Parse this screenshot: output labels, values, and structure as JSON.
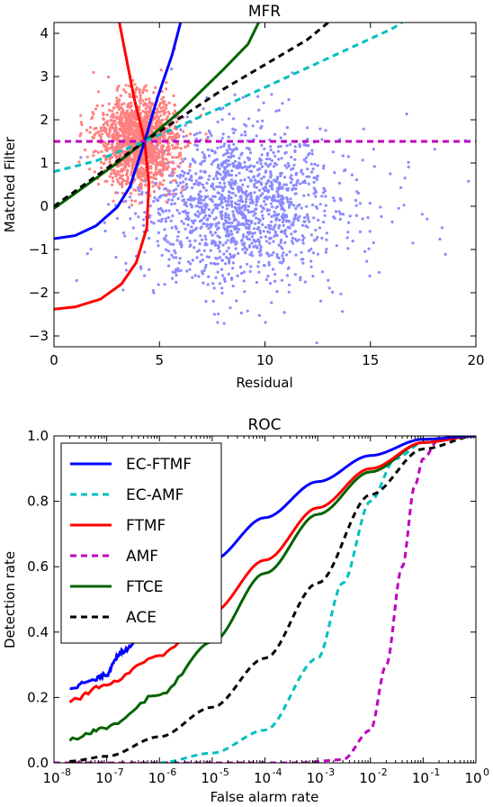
{
  "chart_data": [
    {
      "type": "scatter",
      "title": "MFR",
      "xlabel": "Residual",
      "ylabel": "Matched Filter",
      "xlim": [
        0,
        20
      ],
      "ylim": [
        -3.25,
        4.25
      ],
      "x_ticks": [
        "0",
        "5",
        "10",
        "15",
        "20"
      ],
      "y_ticks": [
        "−3",
        "−2",
        "−1",
        "0",
        "1",
        "2",
        "3",
        "4"
      ],
      "x_tick_values": [
        0,
        5,
        10,
        15,
        20
      ],
      "y_tick_values": [
        -3,
        -2,
        -1,
        0,
        1,
        2,
        3,
        4
      ],
      "scatter_series": [
        {
          "color": "#ff8080",
          "center": [
            4.0,
            1.5
          ],
          "spread": [
            0.9,
            0.5
          ],
          "count": 1600
        },
        {
          "color": "#8a8aff",
          "center": [
            8.5,
            0.0
          ],
          "spread": [
            2.3,
            0.95
          ],
          "count": 1500
        }
      ],
      "curves": [
        {
          "color": "#ff0000",
          "dash": "solid",
          "points": [
            [
              3.1,
              4.25
            ],
            [
              3.4,
              3.5
            ],
            [
              3.8,
              2.5
            ],
            [
              4.3,
              1.5
            ],
            [
              4.5,
              0.5
            ],
            [
              4.4,
              -0.5
            ],
            [
              3.9,
              -1.3
            ],
            [
              3.2,
              -1.8
            ],
            [
              2.2,
              -2.15
            ],
            [
              1.0,
              -2.33
            ],
            [
              0,
              -2.38
            ]
          ]
        },
        {
          "color": "#0000ff",
          "dash": "solid",
          "points": [
            [
              0,
              -0.75
            ],
            [
              1.0,
              -0.68
            ],
            [
              2.0,
              -0.45
            ],
            [
              3.0,
              -0.02
            ],
            [
              3.6,
              0.45
            ],
            [
              4.3,
              1.5
            ],
            [
              4.9,
              2.5
            ],
            [
              5.6,
              3.5
            ],
            [
              6.0,
              4.25
            ]
          ]
        },
        {
          "color": "#006400",
          "dash": "solid",
          "points": [
            [
              0,
              -0.05
            ],
            [
              1,
              0.3
            ],
            [
              2,
              0.65
            ],
            [
              3,
              1.0
            ],
            [
              4.3,
              1.5
            ],
            [
              6,
              2.2
            ],
            [
              8,
              3.15
            ],
            [
              9.2,
              3.75
            ],
            [
              9.7,
              4.25
            ]
          ]
        },
        {
          "color": "#000000",
          "dash": "dashed",
          "points": [
            [
              0,
              0.0
            ],
            [
              4.3,
              1.5
            ],
            [
              8,
              2.7
            ],
            [
              12,
              3.85
            ],
            [
              13.0,
              4.25
            ]
          ]
        },
        {
          "color": "#00bfbf",
          "dash": "dashed",
          "points": [
            [
              0,
              0.8
            ],
            [
              2,
              1.05
            ],
            [
              4.3,
              1.5
            ],
            [
              8,
              2.3
            ],
            [
              12,
              3.2
            ],
            [
              16,
              4.1
            ],
            [
              16.5,
              4.25
            ]
          ]
        },
        {
          "color": "#bf00bf",
          "dash": "dashed",
          "points": [
            [
              0,
              1.5
            ],
            [
              20,
              1.5
            ]
          ]
        }
      ]
    },
    {
      "type": "line",
      "title": "ROC",
      "xlabel": "False alarm rate",
      "ylabel": "Detection rate",
      "xscale": "log",
      "xlim": [
        1e-08,
        1
      ],
      "ylim": [
        0,
        1
      ],
      "x_ticks": [
        "10",
        "10",
        "10",
        "10",
        "10",
        "10",
        "10",
        "10",
        "10"
      ],
      "x_tick_exponents": [
        "-8",
        "-7",
        "-6",
        "-5",
        "-4",
        "-3",
        "-2",
        "-1",
        "0"
      ],
      "x_tick_values": [
        1e-08,
        1e-07,
        1e-06,
        1e-05,
        0.0001,
        0.001,
        0.01,
        0.1,
        1
      ],
      "y_ticks": [
        "0.0",
        "0.2",
        "0.4",
        "0.6",
        "0.8",
        "1.0"
      ],
      "y_tick_values": [
        0,
        0.2,
        0.4,
        0.6,
        0.8,
        1.0
      ],
      "legend": "top-left",
      "series": [
        {
          "name": "EC-FTMF",
          "color": "#0000ff",
          "dash": "solid",
          "x": [
            2e-08,
            5e-08,
            1e-07,
            1.5e-07,
            2e-07,
            4e-07,
            1e-06,
            1e-05,
            0.0001,
            0.001,
            0.01,
            0.1,
            1
          ],
          "y": [
            0.23,
            0.25,
            0.27,
            0.32,
            0.34,
            0.38,
            0.45,
            0.62,
            0.75,
            0.86,
            0.94,
            0.99,
            1.0
          ]
        },
        {
          "name": "EC-AMF",
          "color": "#00bfbf",
          "dash": "dashed",
          "x": [
            1e-06,
            1e-05,
            0.0001,
            0.001,
            0.003,
            0.01,
            0.03,
            0.1,
            1
          ],
          "y": [
            0.0,
            0.03,
            0.1,
            0.32,
            0.55,
            0.8,
            0.93,
            0.98,
            1.0
          ]
        },
        {
          "name": "FTMF",
          "color": "#ff0000",
          "dash": "solid",
          "x": [
            2e-08,
            1e-07,
            1e-06,
            1e-05,
            0.0001,
            0.001,
            0.01,
            0.1,
            1
          ],
          "y": [
            0.19,
            0.24,
            0.33,
            0.46,
            0.62,
            0.78,
            0.9,
            0.98,
            1.0
          ]
        },
        {
          "name": "AMF",
          "color": "#bf00bf",
          "dash": "dashed",
          "x": [
            1e-08,
            0.0005,
            0.003,
            0.01,
            0.02,
            0.04,
            0.07,
            0.1,
            0.2,
            1
          ],
          "y": [
            0.0,
            0.0,
            0.01,
            0.1,
            0.3,
            0.6,
            0.85,
            0.93,
            0.99,
            1.0
          ]
        },
        {
          "name": "FTCE",
          "color": "#006400",
          "dash": "solid",
          "x": [
            2e-08,
            1e-07,
            1e-06,
            1e-05,
            0.0001,
            0.001,
            0.01,
            0.1,
            1
          ],
          "y": [
            0.07,
            0.11,
            0.21,
            0.37,
            0.58,
            0.76,
            0.89,
            0.98,
            1.0
          ]
        },
        {
          "name": "ACE",
          "color": "#000000",
          "dash": "dashed",
          "x": [
            2e-08,
            1e-07,
            1e-06,
            1e-05,
            0.0001,
            0.001,
            0.01,
            0.1,
            1
          ],
          "y": [
            0.005,
            0.02,
            0.08,
            0.17,
            0.32,
            0.55,
            0.82,
            0.96,
            1.0
          ]
        }
      ]
    }
  ]
}
